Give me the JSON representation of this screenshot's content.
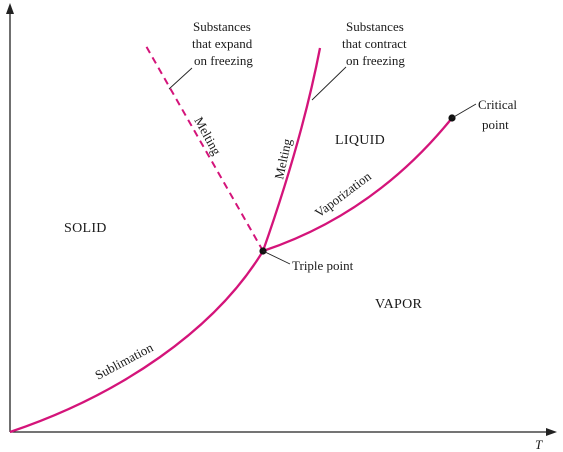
{
  "colors": {
    "curve": "#d4147a",
    "axis": "#222222",
    "text": "#1a1a1a"
  },
  "axes": {
    "x_label": "T"
  },
  "regions": {
    "solid": "SOLID",
    "liquid": "LIQUID",
    "vapor": "VAPOR"
  },
  "curves": {
    "sublimation": "Sublimation",
    "vaporization": "Vaporization",
    "melting_contract": "Melting",
    "melting_expand": "Melting"
  },
  "points": {
    "triple": "Triple point",
    "critical_line1": "Critical",
    "critical_line2": "point"
  },
  "notes": {
    "expand": [
      "Substances",
      "that expand",
      "on freezing"
    ],
    "contract": [
      "Substances",
      "that contract",
      "on freezing"
    ]
  }
}
